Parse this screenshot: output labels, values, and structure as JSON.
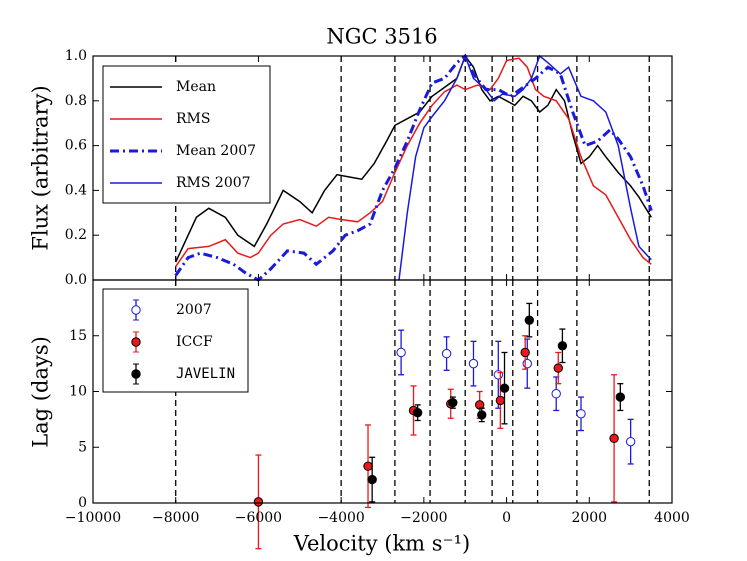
{
  "chart_data": [
    {
      "type": "line",
      "title": "NGC 3516",
      "ylabel": "Flux (arbitrary)",
      "xlim": [
        -10000,
        4000
      ],
      "ylim": [
        0,
        1
      ],
      "yticks": [
        {
          "value": 0,
          "label": "0.0"
        },
        {
          "value": 0.2,
          "label": "0.2"
        },
        {
          "value": 0.4,
          "label": "0.4"
        },
        {
          "value": 0.6,
          "label": "0.6"
        },
        {
          "value": 0.8,
          "label": "0.8"
        },
        {
          "value": 1,
          "label": "1.0"
        }
      ],
      "vlines": [
        -8000,
        -4000,
        -2700,
        -1850,
        -1000,
        -350,
        150,
        750,
        1700,
        3450
      ],
      "legend": "upper left",
      "series": [
        {
          "name": "Mean",
          "color": "#000000",
          "style": "solid",
          "x": [
            -8000,
            -7500,
            -7200,
            -6800,
            -6500,
            -6100,
            -5800,
            -5400,
            -5000,
            -4700,
            -4400,
            -4100,
            -3800,
            -3500,
            -3200,
            -2900,
            -2700,
            -2400,
            -2100,
            -1800,
            -1500,
            -1200,
            -1000,
            -800,
            -600,
            -400,
            -200,
            0,
            200,
            400,
            600,
            800,
            1000,
            1200,
            1400,
            1600,
            1800,
            2000,
            2200,
            2400,
            2700,
            3000,
            3200,
            3500
          ],
          "values": [
            0.08,
            0.28,
            0.32,
            0.28,
            0.2,
            0.15,
            0.25,
            0.4,
            0.35,
            0.3,
            0.4,
            0.47,
            0.46,
            0.45,
            0.52,
            0.62,
            0.69,
            0.72,
            0.75,
            0.82,
            0.86,
            0.9,
            1.0,
            0.95,
            0.85,
            0.8,
            0.82,
            0.8,
            0.78,
            0.82,
            0.8,
            0.75,
            0.78,
            0.85,
            0.8,
            0.65,
            0.52,
            0.55,
            0.6,
            0.55,
            0.48,
            0.42,
            0.37,
            0.28
          ]
        },
        {
          "name": "RMS",
          "color": "#e8191a",
          "style": "solid",
          "x": [
            -8000,
            -7700,
            -7200,
            -6800,
            -6500,
            -6200,
            -6000,
            -5700,
            -5400,
            -5000,
            -4600,
            -4300,
            -4000,
            -3600,
            -3300,
            -3000,
            -2700,
            -2400,
            -2100,
            -1800,
            -1500,
            -1200,
            -1000,
            -700,
            -400,
            -200,
            0,
            300,
            500,
            700,
            900,
            1200,
            1500,
            1800,
            2100,
            2400,
            2700,
            3000,
            3300,
            3500
          ],
          "values": [
            0.06,
            0.14,
            0.15,
            0.18,
            0.12,
            0.1,
            0.12,
            0.2,
            0.25,
            0.27,
            0.24,
            0.28,
            0.27,
            0.26,
            0.3,
            0.35,
            0.48,
            0.6,
            0.7,
            0.78,
            0.84,
            0.87,
            0.85,
            0.87,
            0.85,
            0.9,
            0.98,
            0.99,
            0.95,
            0.85,
            0.82,
            0.8,
            0.72,
            0.55,
            0.42,
            0.38,
            0.28,
            0.18,
            0.1,
            0.07
          ]
        },
        {
          "name": "Mean 2007",
          "color": "#1a1adc",
          "style": "dashdot",
          "x": [
            -8000,
            -7700,
            -7400,
            -7000,
            -6600,
            -6300,
            -6000,
            -5700,
            -5300,
            -4900,
            -4600,
            -4200,
            -3900,
            -3600,
            -3300,
            -3000,
            -2700,
            -2400,
            -2100,
            -1800,
            -1500,
            -1200,
            -1000,
            -800,
            -500,
            -200,
            100,
            400,
            700,
            1000,
            1300,
            1600,
            1900,
            2200,
            2500,
            2700,
            3000,
            3300,
            3500
          ],
          "values": [
            0.02,
            0.1,
            0.12,
            0.1,
            0.07,
            0.03,
            0.0,
            0.05,
            0.13,
            0.12,
            0.07,
            0.13,
            0.2,
            0.22,
            0.25,
            0.4,
            0.5,
            0.62,
            0.76,
            0.88,
            0.9,
            0.97,
            1.0,
            0.92,
            0.85,
            0.85,
            0.82,
            0.86,
            0.9,
            0.95,
            0.92,
            0.75,
            0.6,
            0.62,
            0.67,
            0.63,
            0.55,
            0.42,
            0.31
          ]
        },
        {
          "name": "RMS 2007",
          "color": "#1a1adc",
          "style": "solid",
          "x": [
            -2600,
            -2400,
            -2200,
            -2000,
            -1800,
            -1500,
            -1200,
            -1000,
            -800,
            -500,
            -300,
            -100,
            200,
            400,
            600,
            800,
            1000,
            1300,
            1500,
            1800,
            2100,
            2400,
            2700,
            3000,
            3200,
            3500
          ],
          "values": [
            0.0,
            0.3,
            0.55,
            0.68,
            0.73,
            0.8,
            0.9,
            1.0,
            0.9,
            0.85,
            0.8,
            0.83,
            0.82,
            0.85,
            0.9,
            1.0,
            0.97,
            0.92,
            0.95,
            0.82,
            0.8,
            0.75,
            0.6,
            0.32,
            0.15,
            0.09
          ]
        }
      ]
    },
    {
      "type": "errorbar",
      "ylabel": "Lag (days)",
      "xlabel": "Velocity (km s⁻¹)",
      "xlim": [
        -10000,
        4000
      ],
      "ylim": [
        0,
        20
      ],
      "xticks": [
        {
          "value": -10000,
          "label": "−10000"
        },
        {
          "value": -8000,
          "label": "−8000"
        },
        {
          "value": -6000,
          "label": "−6000"
        },
        {
          "value": -4000,
          "label": "−4000"
        },
        {
          "value": -2000,
          "label": "−2000"
        },
        0,
        2000,
        4000
      ],
      "yticks": [
        0,
        5,
        10,
        15
      ],
      "legend": "upper left",
      "series": [
        {
          "name": "2007",
          "color": "#1a1adc",
          "marker": "open",
          "x": [
            -2550,
            -1450,
            -800,
            -200,
            500,
            1200,
            1800,
            3000
          ],
          "values": [
            13.5,
            13.4,
            12.5,
            11.5,
            12.5,
            9.8,
            8.0,
            5.5
          ],
          "errors": [
            2.0,
            1.5,
            2.0,
            3.0,
            2.2,
            1.5,
            1.5,
            2.0
          ]
        },
        {
          "name": "ICCF",
          "color": "#e8191a",
          "marker": "filled",
          "x": [
            -6000,
            -3350,
            -2250,
            -1350,
            -650,
            -150,
            450,
            1250,
            2600
          ],
          "values": [
            0.1,
            3.3,
            8.3,
            8.9,
            8.8,
            9.2,
            13.5,
            12.1,
            5.8
          ],
          "errors": [
            4.2,
            3.7,
            2.2,
            1.3,
            1.2,
            2.5,
            1.5,
            1.4,
            5.7
          ]
        },
        {
          "name": "JAVELIN",
          "color": "#000000",
          "marker": "filled",
          "x": [
            -3250,
            -2150,
            -1300,
            -600,
            -50,
            550,
            1350,
            2750
          ],
          "values": [
            2.1,
            8.1,
            9.0,
            7.9,
            10.3,
            16.4,
            14.1,
            9.5
          ],
          "errors": [
            2.0,
            0.7,
            0.5,
            0.6,
            3.2,
            1.5,
            1.5,
            1.2
          ]
        }
      ]
    }
  ]
}
